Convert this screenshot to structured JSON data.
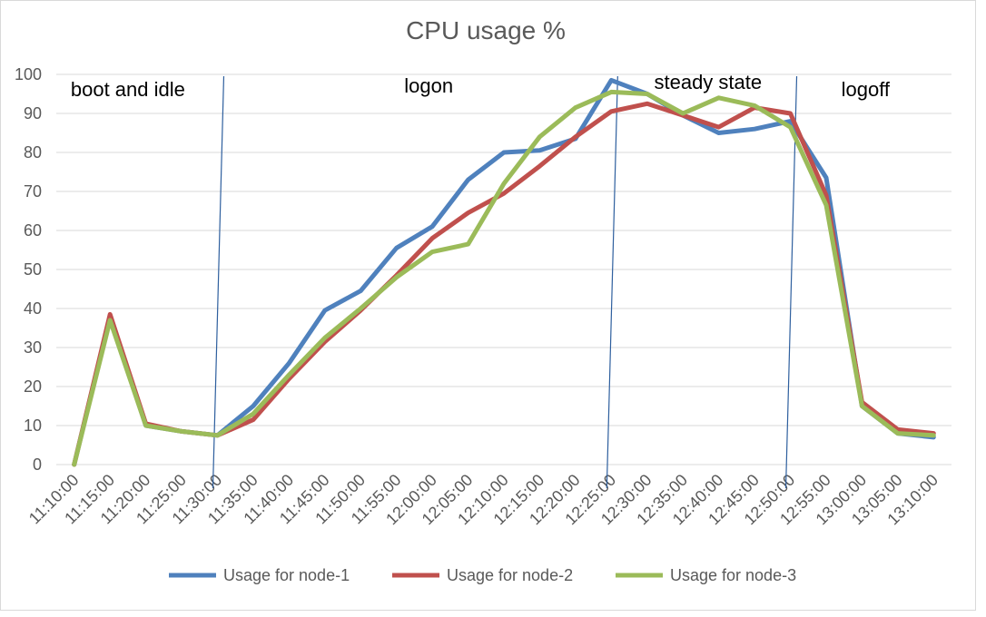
{
  "chart_data": {
    "type": "line",
    "title": "CPU usage %",
    "xlabel": "",
    "ylabel": "",
    "ylim": [
      0,
      100
    ],
    "yticks": [
      0,
      10,
      20,
      30,
      40,
      50,
      60,
      70,
      80,
      90,
      100
    ],
    "grid": true,
    "legend_position": "bottom",
    "categories": [
      "11:10:00",
      "11:15:00",
      "11:20:00",
      "11:25:00",
      "11:30:00",
      "11:35:00",
      "11:40:00",
      "11:45:00",
      "11:50:00",
      "11:55:00",
      "12:00:00",
      "12:05:00",
      "12:10:00",
      "12:15:00",
      "12:20:00",
      "12:25:00",
      "12:30:00",
      "12:35:00",
      "12:40:00",
      "12:45:00",
      "12:50:00",
      "12:55:00",
      "13:00:00",
      "13:05:00",
      "13:10:00"
    ],
    "series": [
      {
        "name": "Usage for node-1",
        "color": "#4f81bd",
        "values": [
          0,
          38,
          10,
          8.5,
          7.5,
          15,
          26,
          39.5,
          44.5,
          55.5,
          61,
          73,
          80,
          80.5,
          83.5,
          98.5,
          95,
          89.5,
          85,
          86,
          88,
          73.5,
          15,
          8,
          7
        ]
      },
      {
        "name": "Usage for node-2",
        "color": "#c0504d",
        "values": [
          0,
          38.5,
          10.5,
          8.5,
          7.5,
          11.5,
          22,
          31.5,
          39.5,
          48.5,
          58,
          64.5,
          69.5,
          76.5,
          84,
          90.5,
          92.5,
          89.5,
          86.5,
          91.5,
          90,
          69,
          16,
          9,
          8
        ]
      },
      {
        "name": "Usage for node-3",
        "color": "#9bbb59",
        "values": [
          0,
          37,
          10,
          8.5,
          7.5,
          13,
          23,
          32.5,
          40,
          48,
          54.5,
          56.5,
          72,
          84,
          91.5,
          95.5,
          95,
          90,
          94,
          92,
          86.5,
          66.5,
          15,
          8,
          7.5
        ]
      }
    ],
    "phase_dividers_after_index": [
      4,
      15,
      20
    ],
    "annotations": [
      {
        "text": "boot and idle",
        "anchor_index": 1.5
      },
      {
        "text": "logon",
        "anchor_index": 9.9
      },
      {
        "text": "steady state",
        "anchor_index": 17.7
      },
      {
        "text": "logoff",
        "anchor_index": 22.1
      }
    ]
  }
}
